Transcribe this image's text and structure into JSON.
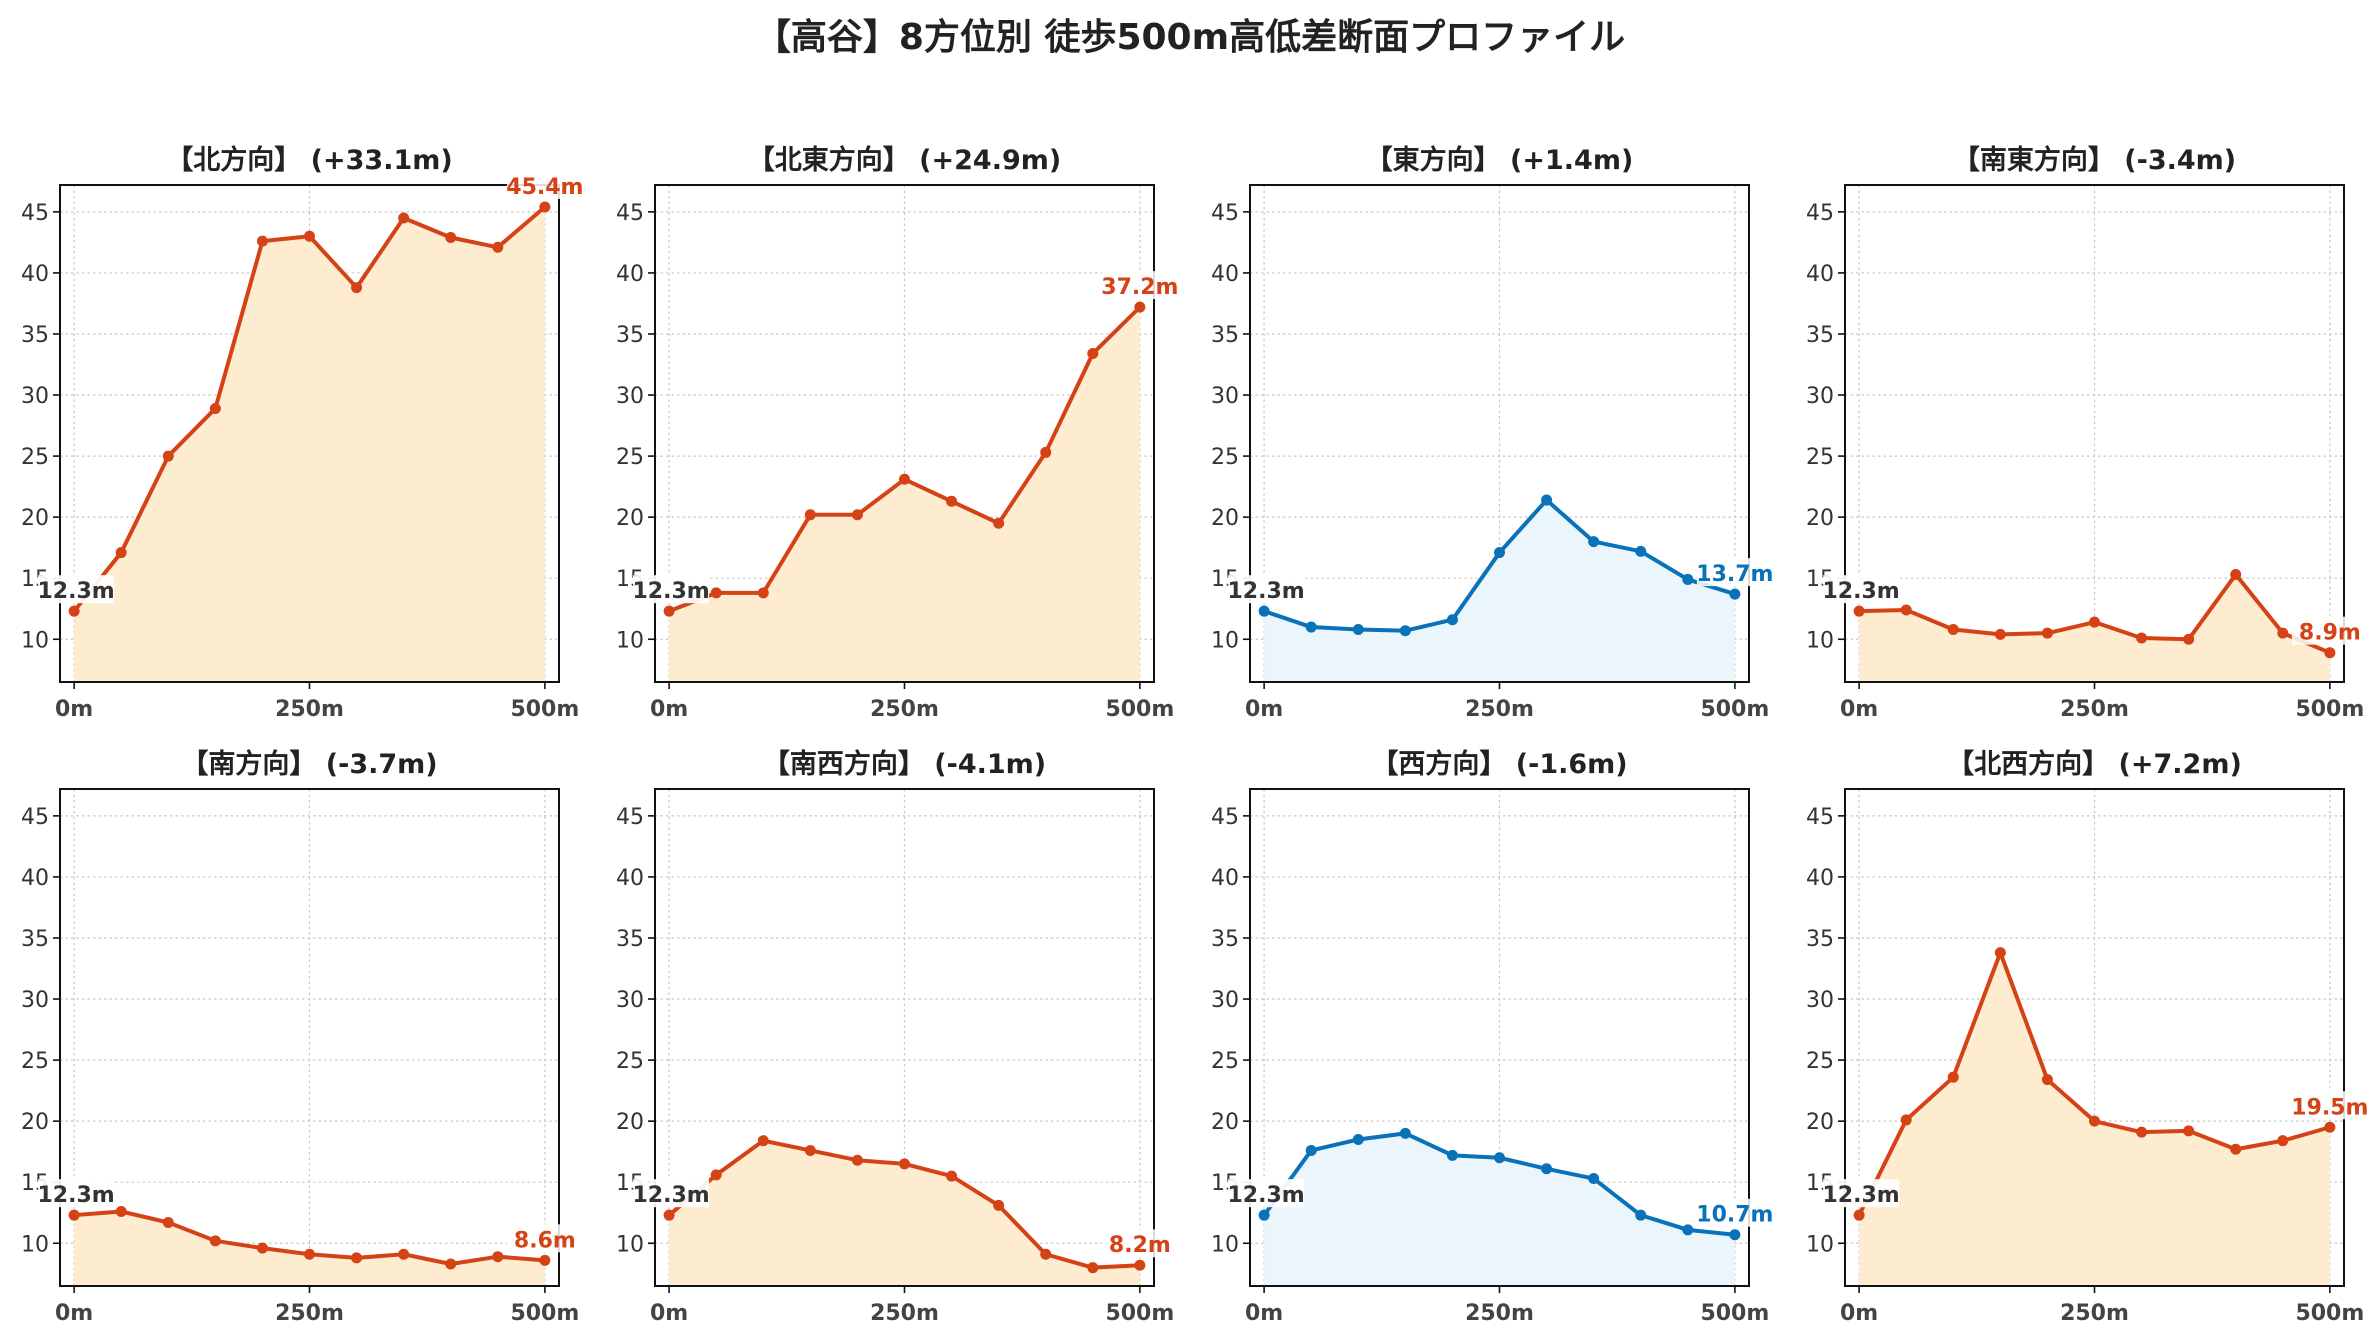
{
  "figure": {
    "suptitle": "【高谷】8方位別 徒歩500m高低差断面プロファイル",
    "colors": {
      "up_line": "#d44216",
      "up_fill": "#fdeccf",
      "flat_line": "#0a72b8",
      "flat_fill": "#eaf6fb",
      "start_label": "#333333",
      "grid": "#c8c8c8",
      "tick_text": "#333333"
    }
  },
  "chart_data": [
    {
      "type": "area",
      "title": "【北方向】 (+33.1m)",
      "x": [
        0,
        50,
        100,
        150,
        200,
        250,
        300,
        350,
        400,
        450,
        500
      ],
      "y": [
        12.3,
        17.1,
        25.0,
        28.9,
        42.6,
        43.0,
        38.8,
        44.5,
        42.9,
        42.1,
        45.4
      ],
      "start_label": "12.3m",
      "end_label": "45.4m",
      "style": "up",
      "xticks": [
        "0m",
        "250m",
        "500m"
      ],
      "yticks": [
        10,
        15,
        20,
        25,
        30,
        35,
        40,
        45
      ],
      "xlim": [
        -15,
        515
      ],
      "ylim": [
        6.5,
        47.2
      ],
      "grid": true
    },
    {
      "type": "area",
      "title": "【北東方向】 (+24.9m)",
      "x": [
        0,
        50,
        100,
        150,
        200,
        250,
        300,
        350,
        400,
        450,
        500
      ],
      "y": [
        12.3,
        13.8,
        13.8,
        20.2,
        20.2,
        23.1,
        21.3,
        19.5,
        25.3,
        33.4,
        37.2
      ],
      "start_label": "12.3m",
      "end_label": "37.2m",
      "style": "up",
      "xticks": [
        "0m",
        "250m",
        "500m"
      ],
      "yticks": [
        10,
        15,
        20,
        25,
        30,
        35,
        40,
        45
      ],
      "xlim": [
        -15,
        515
      ],
      "ylim": [
        6.5,
        47.2
      ],
      "grid": true
    },
    {
      "type": "area",
      "title": "【東方向】 (+1.4m)",
      "x": [
        0,
        50,
        100,
        150,
        200,
        250,
        300,
        350,
        400,
        450,
        500
      ],
      "y": [
        12.3,
        11.0,
        10.8,
        10.7,
        11.6,
        17.1,
        21.4,
        18.0,
        17.2,
        14.9,
        13.7
      ],
      "start_label": "12.3m",
      "end_label": "13.7m",
      "style": "flat",
      "xticks": [
        "0m",
        "250m",
        "500m"
      ],
      "yticks": [
        10,
        15,
        20,
        25,
        30,
        35,
        40,
        45
      ],
      "xlim": [
        -15,
        515
      ],
      "ylim": [
        6.5,
        47.2
      ],
      "grid": true
    },
    {
      "type": "area",
      "title": "【南東方向】 (-3.4m)",
      "x": [
        0,
        50,
        100,
        150,
        200,
        250,
        300,
        350,
        400,
        450,
        500
      ],
      "y": [
        12.3,
        12.4,
        10.8,
        10.4,
        10.5,
        11.4,
        10.1,
        10.0,
        15.3,
        10.5,
        8.9
      ],
      "start_label": "12.3m",
      "end_label": "8.9m",
      "style": "up",
      "xticks": [
        "0m",
        "250m",
        "500m"
      ],
      "yticks": [
        10,
        15,
        20,
        25,
        30,
        35,
        40,
        45
      ],
      "xlim": [
        -15,
        515
      ],
      "ylim": [
        6.5,
        47.2
      ],
      "grid": true
    },
    {
      "type": "area",
      "title": "【南方向】 (-3.7m)",
      "x": [
        0,
        50,
        100,
        150,
        200,
        250,
        300,
        350,
        400,
        450,
        500
      ],
      "y": [
        12.3,
        12.6,
        11.7,
        10.2,
        9.6,
        9.1,
        8.8,
        9.1,
        8.3,
        8.9,
        8.6
      ],
      "start_label": "12.3m",
      "end_label": "8.6m",
      "style": "up",
      "xticks": [
        "0m",
        "250m",
        "500m"
      ],
      "yticks": [
        10,
        15,
        20,
        25,
        30,
        35,
        40,
        45
      ],
      "xlim": [
        -15,
        515
      ],
      "ylim": [
        6.5,
        47.2
      ],
      "grid": true
    },
    {
      "type": "area",
      "title": "【南西方向】 (-4.1m)",
      "x": [
        0,
        50,
        100,
        150,
        200,
        250,
        300,
        350,
        400,
        450,
        500
      ],
      "y": [
        12.3,
        15.6,
        18.4,
        17.6,
        16.8,
        16.5,
        15.5,
        13.1,
        9.1,
        8.0,
        8.2
      ],
      "start_label": "12.3m",
      "end_label": "8.2m",
      "style": "up",
      "xticks": [
        "0m",
        "250m",
        "500m"
      ],
      "yticks": [
        10,
        15,
        20,
        25,
        30,
        35,
        40,
        45
      ],
      "xlim": [
        -15,
        515
      ],
      "ylim": [
        6.5,
        47.2
      ],
      "grid": true
    },
    {
      "type": "area",
      "title": "【西方向】 (-1.6m)",
      "x": [
        0,
        50,
        100,
        150,
        200,
        250,
        300,
        350,
        400,
        450,
        500
      ],
      "y": [
        12.3,
        17.6,
        18.5,
        19.0,
        17.2,
        17.0,
        16.1,
        15.3,
        12.3,
        11.1,
        10.7
      ],
      "start_label": "12.3m",
      "end_label": "10.7m",
      "style": "flat",
      "xticks": [
        "0m",
        "250m",
        "500m"
      ],
      "yticks": [
        10,
        15,
        20,
        25,
        30,
        35,
        40,
        45
      ],
      "xlim": [
        -15,
        515
      ],
      "ylim": [
        6.5,
        47.2
      ],
      "grid": true
    },
    {
      "type": "area",
      "title": "【北西方向】 (+7.2m)",
      "x": [
        0,
        50,
        100,
        150,
        200,
        250,
        300,
        350,
        400,
        450,
        500
      ],
      "y": [
        12.3,
        20.1,
        23.6,
        33.8,
        23.4,
        20.0,
        19.1,
        19.2,
        17.7,
        18.4,
        19.5
      ],
      "start_label": "12.3m",
      "end_label": "19.5m",
      "style": "up",
      "xticks": [
        "0m",
        "250m",
        "500m"
      ],
      "yticks": [
        10,
        15,
        20,
        25,
        30,
        35,
        40,
        45
      ],
      "xlim": [
        -15,
        515
      ],
      "ylim": [
        6.5,
        47.2
      ],
      "grid": true
    }
  ]
}
